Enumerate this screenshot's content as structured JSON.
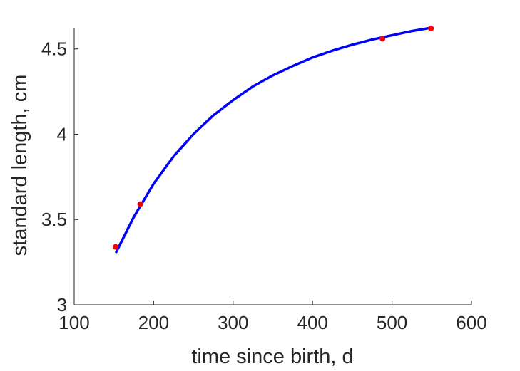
{
  "chart_data": {
    "type": "scatter",
    "xlabel": "time since birth, d",
    "ylabel": "standard length, cm",
    "xlim": [
      100,
      600
    ],
    "ylim": [
      3,
      4.62
    ],
    "xticks": [
      100,
      200,
      300,
      400,
      500,
      600
    ],
    "xtick_labels": [
      "100",
      "200",
      "300",
      "400",
      "500",
      "600"
    ],
    "yticks": [
      3,
      3.5,
      4,
      4.5
    ],
    "ytick_labels": [
      "3",
      "3.5",
      "4",
      "4.5"
    ],
    "grid": false,
    "box": false,
    "series": [
      {
        "type": "scatter",
        "color": "#ff0000",
        "x": [
          152,
          183,
          488,
          549
        ],
        "y": [
          3.34,
          3.59,
          4.56,
          4.62
        ]
      },
      {
        "type": "line",
        "color": "#0000ff",
        "x": [
          153,
          175,
          200,
          225,
          250,
          275,
          300,
          325,
          350,
          375,
          400,
          425,
          450,
          475,
          500,
          525,
          550
        ],
        "y": [
          3.31,
          3.515,
          3.71,
          3.87,
          4.0,
          4.11,
          4.2,
          4.28,
          4.345,
          4.4,
          4.45,
          4.49,
          4.525,
          4.555,
          4.58,
          4.605,
          4.625
        ]
      }
    ]
  }
}
